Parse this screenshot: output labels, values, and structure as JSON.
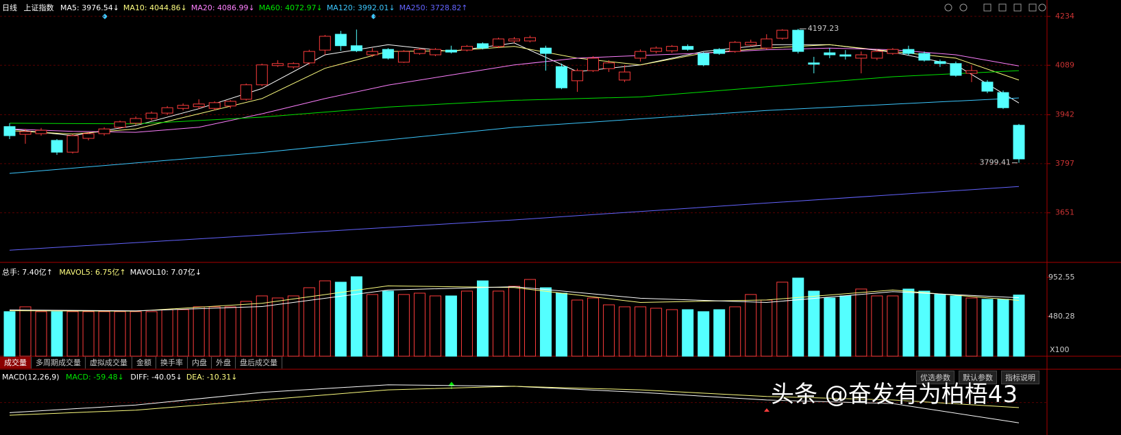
{
  "header": {
    "period": "日线",
    "symbol": "上证指数"
  },
  "tabs": [
    "成交量",
    "多周期成交量",
    "虚拟成交量",
    "金额",
    "换手率",
    "内盘",
    "外盘",
    "盘后成交量"
  ],
  "buttons": [
    "优选参数",
    "默认参数",
    "指标说明"
  ],
  "watermark": "头条 @奋发有为柏梧43",
  "chart_data": [
    {
      "type": "candlestick",
      "up_color": "#ff3c3c",
      "down_color": "#54ffff",
      "categories": [
        null,
        null,
        null,
        null,
        null,
        null,
        null,
        null,
        null,
        null,
        null,
        null,
        null,
        null,
        null,
        null,
        null,
        null,
        null,
        null,
        null,
        null,
        null,
        null,
        null,
        null,
        null,
        null,
        null,
        null,
        null,
        null,
        null,
        null,
        null,
        null,
        null,
        null,
        null,
        null,
        null,
        null,
        null,
        null,
        null,
        null,
        null,
        null,
        null,
        null,
        null,
        null,
        null,
        null,
        null,
        null,
        null,
        null,
        null,
        null,
        null,
        null,
        null,
        null,
        null
      ],
      "open": [
        3907,
        3884,
        3886,
        3866,
        3831,
        3872,
        3886,
        3905,
        3917,
        3931,
        3947,
        3961,
        3966,
        3961,
        3968,
        3988,
        4031,
        4088,
        4084,
        4096,
        4134,
        4181,
        4147,
        4120,
        4136,
        4098,
        4124,
        4120,
        4134,
        4134,
        4153,
        4145,
        4161,
        4161,
        4140,
        4085,
        4043,
        4073,
        4079,
        4045,
        4110,
        4130,
        4132,
        4145,
        4124,
        4136,
        4130,
        4149,
        4140,
        4169,
        4193,
        4096,
        4126,
        4120,
        4110,
        4110,
        4124,
        4136,
        4124,
        4100,
        4094,
        4065,
        4039,
        4008,
        3911
      ],
      "high": [
        3917,
        3900,
        3903,
        3870,
        3884,
        3890,
        3905,
        3925,
        3937,
        3952,
        3968,
        3976,
        3988,
        3982,
        3986,
        4035,
        4094,
        4104,
        4098,
        4135,
        4179,
        4191,
        4195,
        4140,
        4140,
        4134,
        4140,
        4140,
        4147,
        4149,
        4157,
        4171,
        4173,
        4177,
        4147,
        4094,
        4079,
        4116,
        4104,
        4090,
        4136,
        4145,
        4149,
        4151,
        4128,
        4140,
        4161,
        4165,
        4181,
        4196,
        4197.23,
        4114,
        4140,
        4134,
        4130,
        4136,
        4140,
        4147,
        4130,
        4106,
        4100,
        4088,
        4045,
        4014,
        3915
      ],
      "low": [
        3870,
        3856,
        3880,
        3823,
        3827,
        3866,
        3880,
        3900,
        3911,
        3925,
        3941,
        3955,
        3959,
        3955,
        3961,
        3984,
        4027,
        4084,
        4079,
        4092,
        4120,
        4132,
        4128,
        4114,
        4106,
        4096,
        4120,
        4116,
        4124,
        4130,
        4136,
        4140,
        4155,
        4157,
        4073,
        4018,
        4010,
        4069,
        4069,
        4039,
        4100,
        4124,
        4126,
        4132,
        4086,
        4120,
        4126,
        4145,
        4136,
        4165,
        4124,
        4065,
        4110,
        4106,
        4065,
        4104,
        4120,
        4118,
        4100,
        4084,
        4055,
        4039,
        4006,
        3959,
        3799.41
      ],
      "close": [
        3880,
        3892,
        3896,
        3831,
        3880,
        3886,
        3900,
        3921,
        3931,
        3947,
        3963,
        3970,
        3974,
        3978,
        3982,
        4031,
        4090,
        4094,
        4094,
        4130,
        4175,
        4147,
        4132,
        4130,
        4110,
        4130,
        4136,
        4136,
        4128,
        4145,
        4140,
        4167,
        4167,
        4171,
        4124,
        4022,
        4073,
        4110,
        4096,
        4069,
        4130,
        4140,
        4145,
        4136,
        4090,
        4124,
        4157,
        4157,
        4167,
        4193,
        4130,
        4092,
        4120,
        4116,
        4120,
        4130,
        4136,
        4124,
        4104,
        4094,
        4059,
        4073,
        4012,
        3963,
        3811
      ],
      "ma": [
        {
          "label": "MA5: 3976.54↓",
          "color": "#ffffff",
          "x": [
            0,
            4,
            8,
            12,
            16,
            20,
            24,
            28,
            32,
            36,
            40,
            44,
            48,
            52,
            56,
            60,
            64
          ],
          "values": [
            3900,
            3880,
            3910,
            3960,
            4020,
            4120,
            4150,
            4130,
            4155,
            4070,
            4090,
            4130,
            4150,
            4150,
            4128,
            4090,
            3977
          ]
        },
        {
          "label": "MA10: 4044.86↓",
          "color": "#ffff80",
          "x": [
            0,
            4,
            8,
            12,
            16,
            20,
            24,
            28,
            32,
            36,
            40,
            44,
            48,
            52,
            56,
            60,
            64
          ],
          "values": [
            3895,
            3885,
            3900,
            3945,
            3990,
            4080,
            4130,
            4132,
            4145,
            4110,
            4090,
            4125,
            4140,
            4150,
            4130,
            4110,
            4045
          ]
        },
        {
          "label": "MA20: 4086.99↓",
          "color": "#ff80ff",
          "x": [
            0,
            4,
            8,
            12,
            16,
            20,
            24,
            28,
            32,
            36,
            40,
            44,
            48,
            52,
            56,
            60,
            64
          ],
          "values": [
            3900,
            3893,
            3890,
            3905,
            3945,
            3990,
            4030,
            4060,
            4090,
            4110,
            4118,
            4125,
            4135,
            4140,
            4135,
            4120,
            4087
          ]
        },
        {
          "label": "MA60: 4072.97↓",
          "color": "#00e600",
          "x": [
            0,
            8,
            16,
            24,
            32,
            40,
            48,
            56,
            64
          ],
          "values": [
            3917,
            3915,
            3935,
            3965,
            3985,
            3995,
            4025,
            4055,
            4073
          ]
        },
        {
          "label": "MA120: 3992.01↓",
          "color": "#3cc8ff",
          "x": [
            0,
            16,
            32,
            48,
            64
          ],
          "values": [
            3768,
            3830,
            3905,
            3955,
            3992
          ]
        },
        {
          "label": "MA250: 3728.82↑",
          "color": "#6464ff",
          "x": [
            0,
            16,
            32,
            48,
            64
          ],
          "values": [
            3540,
            3585,
            3630,
            3680,
            3729
          ]
        }
      ],
      "ylim": [
        3506,
        4242
      ],
      "yticks": [
        4234,
        4089,
        3942,
        3797,
        3651
      ],
      "grid": true
    },
    {
      "type": "bar",
      "title": "总手: 7.40亿↑",
      "up_color": "#ff3c3c",
      "down_color": "#54ffff",
      "values": [
        539,
        597,
        539,
        539,
        539,
        539,
        539,
        539,
        539,
        539,
        563,
        563,
        597,
        597,
        597,
        663,
        729,
        704,
        729,
        828,
        911,
        895,
        961,
        746,
        787,
        746,
        762,
        729,
        729,
        787,
        911,
        787,
        845,
        928,
        828,
        762,
        679,
        704,
        621,
        597,
        597,
        580,
        563,
        563,
        539,
        563,
        597,
        746,
        679,
        895,
        945,
        787,
        704,
        729,
        812,
        729,
        729,
        812,
        787,
        746,
        729,
        704,
        688,
        688,
        740
      ],
      "series": [
        {
          "label": "MAVOL5: 6.75亿↑",
          "color": "#ffff80",
          "x": [
            0,
            8,
            16,
            24,
            32,
            40,
            48,
            56,
            64
          ],
          "values": [
            550,
            545,
            640,
            850,
            830,
            650,
            680,
            800,
            675
          ]
        },
        {
          "label": "MAVOL10: 7.07亿↓",
          "color": "#ffffff",
          "x": [
            0,
            8,
            16,
            24,
            32,
            40,
            48,
            56,
            64
          ],
          "values": [
            560,
            548,
            600,
            800,
            840,
            700,
            650,
            780,
            707
          ]
        }
      ],
      "ylim": [
        0,
        1010
      ],
      "yticks": [
        952.55,
        480.28
      ],
      "unit_label": "X100"
    },
    {
      "type": "line",
      "title": "MACD(12,26,9)",
      "macd_label": "MACD: -59.48↓",
      "series": [
        {
          "label": "DIFF: -40.05↓",
          "color": "#ffffff",
          "x": [
            0,
            8,
            16,
            24,
            32,
            40,
            48,
            56,
            64
          ],
          "values": [
            -20,
            -5,
            20,
            35,
            32,
            20,
            5,
            -2,
            -40
          ]
        },
        {
          "label": "DEA: -10.31↓",
          "color": "#ffff80",
          "x": [
            0,
            8,
            16,
            24,
            32,
            40,
            48,
            56,
            64
          ],
          "values": [
            -25,
            -15,
            5,
            25,
            32,
            25,
            12,
            5,
            -10
          ]
        }
      ],
      "ylim": [
        -60,
        40
      ]
    }
  ]
}
